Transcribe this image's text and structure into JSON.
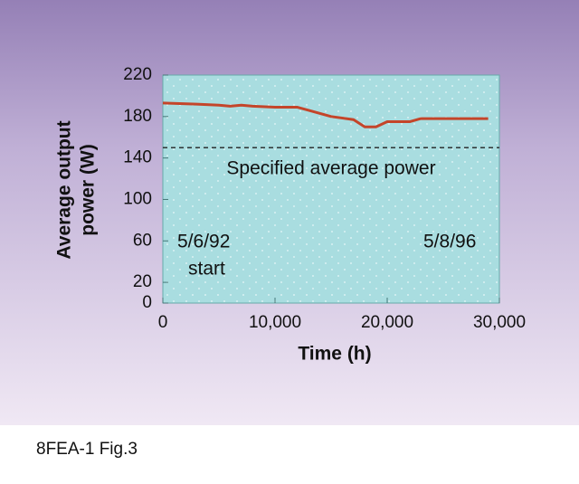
{
  "chart_data": {
    "type": "line",
    "ylabel": [
      "Average output",
      "power (W)"
    ],
    "xlabel": "Time (h)",
    "x": [
      0,
      3000,
      5000,
      6000,
      7000,
      8000,
      10000,
      12000,
      13000,
      15000,
      17000,
      18000,
      19000,
      20000,
      22000,
      23000,
      26000,
      29000
    ],
    "values": [
      193,
      192,
      191,
      190,
      191,
      190,
      189,
      189,
      186,
      180,
      177,
      170,
      170,
      175,
      175,
      178,
      178,
      178
    ],
    "color": "#c4452a",
    "xlim": [
      0,
      30000
    ],
    "xticks": [
      0,
      {
        "value": 10000,
        "label": "10,000"
      },
      {
        "value": 20000,
        "label": "20,000"
      },
      {
        "value": 30000,
        "label": "30,000"
      }
    ],
    "ylim": [
      0,
      220
    ],
    "yticks": [
      0,
      20,
      60,
      100,
      140,
      180,
      220
    ],
    "reference_line": {
      "value": 150,
      "label": "Specified average power"
    },
    "annotations": [
      "5/6/92",
      "start",
      "5/8/96"
    ]
  },
  "caption": "8FEA-1 Fig.3"
}
